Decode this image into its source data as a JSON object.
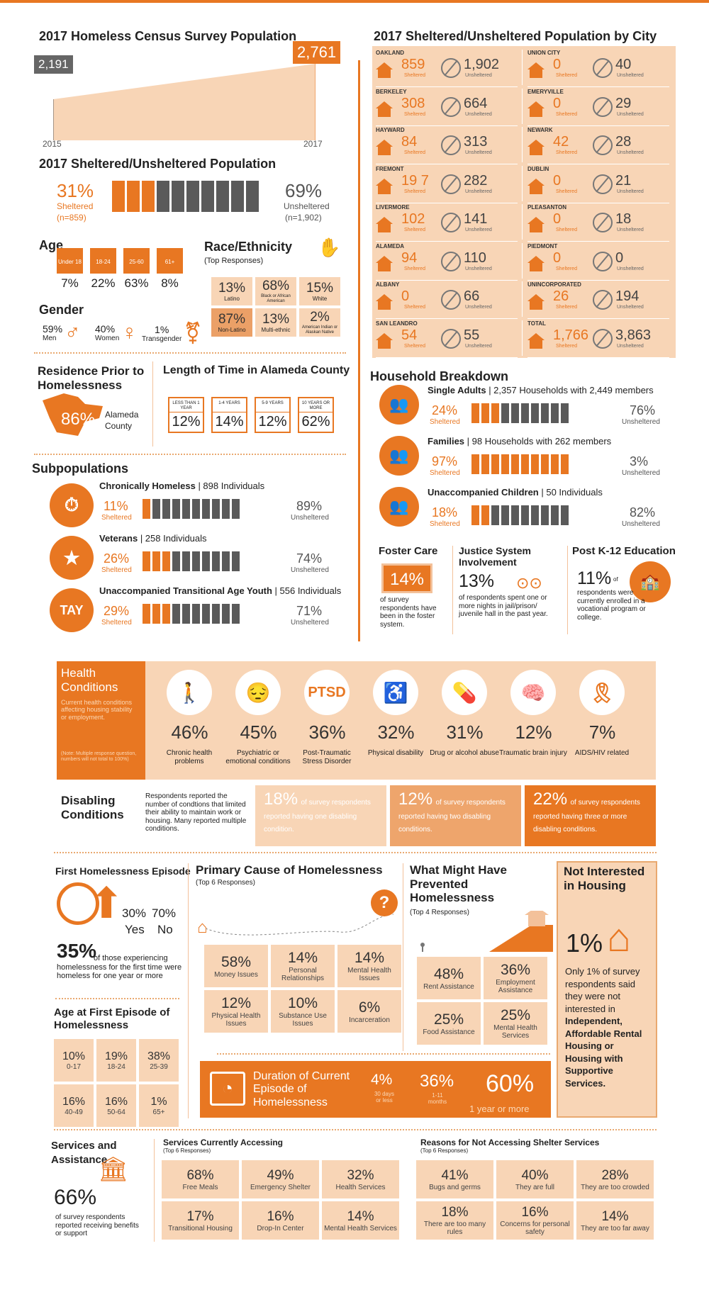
{
  "top": {
    "census_title": "2017 Homeless Census Survey Population",
    "v2015": "2,191",
    "v2017": "2,761",
    "y1": "2015",
    "y2": "2017",
    "city_title": "2017 Sheltered/Unsheltered Population by City",
    "sheltered_title": "2017 Sheltered/Unsheltered Population",
    "pct_sh": "31%",
    "lbl_sh": "Sheltered",
    "n_sh": "(n=859)",
    "pct_un": "69%",
    "lbl_un": "Unsheltered",
    "n_un": "(n=1,902)"
  },
  "cities": [
    {
      "name": "OAKLAND",
      "s": "859",
      "u": "1,902"
    },
    {
      "name": "UNION CITY",
      "s": "0",
      "u": "40"
    },
    {
      "name": "BERKELEY",
      "s": "308",
      "u": "664"
    },
    {
      "name": "EMERYVILLE",
      "s": "0",
      "u": "29"
    },
    {
      "name": "HAYWARD",
      "s": "84",
      "u": "313"
    },
    {
      "name": "NEWARK",
      "s": "42",
      "u": "28"
    },
    {
      "name": "FREMONT",
      "s": "19 7",
      "u": "282"
    },
    {
      "name": "DUBLIN",
      "s": "0",
      "u": "21"
    },
    {
      "name": "LIVERMORE",
      "s": "102",
      "u": "141"
    },
    {
      "name": "PLEASANTON",
      "s": "0",
      "u": "18"
    },
    {
      "name": "ALAMEDA",
      "s": "94",
      "u": "110"
    },
    {
      "name": "PIEDMONT",
      "s": "0",
      "u": "0"
    },
    {
      "name": "ALBANY",
      "s": "0",
      "u": "66"
    },
    {
      "name": "UNINCORPORATED",
      "s": "26",
      "u": "194"
    },
    {
      "name": "SAN LEANDRO",
      "s": "54",
      "u": "55"
    },
    {
      "name": "TOTAL",
      "s": "1,766",
      "u": "3,863"
    }
  ],
  "city_labels": {
    "s": "Sheltered",
    "u": "Unsheltered"
  },
  "age": {
    "title": "Age",
    "groups": [
      {
        "tag": "Under 18",
        "v": "7%"
      },
      {
        "tag": "18-24",
        "v": "22%"
      },
      {
        "tag": "25-60",
        "v": "63%"
      },
      {
        "tag": "61+",
        "v": "8%"
      }
    ]
  },
  "gender": {
    "title": "Gender",
    "men_v": "59%",
    "men": "Men",
    "women_v": "40%",
    "women": "Women",
    "trans_v": "1%",
    "trans": "Transgender"
  },
  "race": {
    "title": "Race/Ethnicity",
    "sub": "(Top Responses)",
    "cells": [
      {
        "v": "13%",
        "l": "Latino"
      },
      {
        "v": "68%",
        "l": "Black or African American"
      },
      {
        "v": "15%",
        "l": "White"
      },
      {
        "v": "87%",
        "l": "Non-Latino"
      },
      {
        "v": "13%",
        "l": "Multi-ethnic"
      },
      {
        "v": "2%",
        "l": "American Indian or Alaskan Native"
      }
    ]
  },
  "residence": {
    "title": "Residence Prior to Homelessness",
    "v": "86%",
    "l": "Alameda County"
  },
  "length": {
    "title": "Length of Time in Alameda County",
    "items": [
      {
        "tag": "LESS THAN 1 YEAR",
        "v": "12%"
      },
      {
        "tag": "1-4 YEARS",
        "v": "14%"
      },
      {
        "tag": "5-9 YEARS",
        "v": "12%"
      },
      {
        "tag": "10 YEARS OR MORE",
        "v": "62%"
      }
    ]
  },
  "household": {
    "title": "Household Breakdown",
    "rows": [
      {
        "head": "Single Adults",
        "rest": " | 2,357 Households with 2,449 members",
        "sv": "24%",
        "uv": "76%",
        "n": 3
      },
      {
        "head": "Families",
        "rest": " | 98 Households with 262 members",
        "sv": "97%",
        "uv": "3%",
        "n": 10
      },
      {
        "head": "Unaccompanied Children",
        "rest": " | 50 Individuals",
        "sv": "18%",
        "uv": "82%",
        "n": 2
      }
    ],
    "s": "Sheltered",
    "u": "Unsheltered"
  },
  "subpop": {
    "title": "Subpopulations",
    "rows": [
      {
        "head": "Chronically Homeless",
        "rest": " | 898 Individuals",
        "sv": "11%",
        "uv": "89%",
        "n": 1
      },
      {
        "head": "Veterans",
        "rest": " | 258 Individuals",
        "sv": "26%",
        "uv": "74%",
        "n": 3
      },
      {
        "head": "Unaccompanied Transitional Age Youth",
        "rest": " | 556 Individuals",
        "sv": "29%",
        "uv": "71%",
        "n": 3
      }
    ],
    "tay": "TAY",
    "s": "Sheltered",
    "u": "Unsheltered"
  },
  "foster": {
    "title": "Foster Care",
    "v": "14%",
    "t": "of survey respondents have been in the foster system."
  },
  "justice": {
    "title": "Justice System Involvement",
    "v": "13%",
    "t": "of respondents spent one or more nights in jail/prison/ juvenile hall in the past year."
  },
  "k12": {
    "title": "Post K-12 Education",
    "v": "11%",
    "of": "of",
    "t": "respondents were currently enrolled in a vocational program or college."
  },
  "health": {
    "title": "Health Conditions",
    "desc": "Current health conditions affecting housing stability or employment.",
    "note": "(Note: Multiple response question, numbers will not total to 100%)",
    "items": [
      {
        "v": "46%",
        "l": "Chronic health problems"
      },
      {
        "v": "45%",
        "l": "Psychiatric or emotional conditions"
      },
      {
        "v": "36%",
        "l": "Post-Traumatic Stress Disorder",
        "icon": "PTSD"
      },
      {
        "v": "32%",
        "l": "Physical disability"
      },
      {
        "v": "31%",
        "l": "Drug or alcohol abuse"
      },
      {
        "v": "12%",
        "l": "Traumatic brain injury"
      },
      {
        "v": "7%",
        "l": "AIDS/HIV related"
      }
    ]
  },
  "disabling": {
    "title": "Disabling Conditions",
    "desc": "Respondents reported the number of condtions that limited their ability to maintain work or housing. Many reported multiple conditions.",
    "items": [
      {
        "v": "18%",
        "t": "of survey respondents reported having one disabling condition."
      },
      {
        "v": "12%",
        "t": "of survey respondents reported having two disabling conditions."
      },
      {
        "v": "22%",
        "t": "of survey respondents reported having three or more disabling conditions."
      }
    ]
  },
  "first": {
    "title": "First Homelessness Episode",
    "yes_v": "30%",
    "no_v": "70%",
    "yes": "Yes",
    "no": "No",
    "big": "35%",
    "t": "of those experiencing homelessness for the first time were homeless for one year or more"
  },
  "agefirst": {
    "title": "Age at First Episode of Homelessness",
    "cells": [
      {
        "v": "10%",
        "l": "0-17"
      },
      {
        "v": "19%",
        "l": "18-24"
      },
      {
        "v": "38%",
        "l": "25-39"
      },
      {
        "v": "16%",
        "l": "40-49"
      },
      {
        "v": "16%",
        "l": "50-64"
      },
      {
        "v": "1%",
        "l": "65+"
      }
    ]
  },
  "cause": {
    "title": "Primary Cause of Homelessness",
    "sub": "(Top 6 Responses)",
    "cells": [
      {
        "v": "58%",
        "l": "Money Issues"
      },
      {
        "v": "14%",
        "l": "Personal Relationships"
      },
      {
        "v": "14%",
        "l": "Mental Health Issues"
      },
      {
        "v": "12%",
        "l": "Physical Health Issues"
      },
      {
        "v": "10%",
        "l": "Substance Use Issues"
      },
      {
        "v": "6%",
        "l": "Incarceration"
      }
    ]
  },
  "prevent": {
    "title": "What Might Have Prevented Homelessness",
    "sub": "(Top 4 Responses)",
    "cells": [
      {
        "v": "48%",
        "l": "Rent Assistance"
      },
      {
        "v": "36%",
        "l": "Employment Assistance"
      },
      {
        "v": "25%",
        "l": "Food Assistance"
      },
      {
        "v": "25%",
        "l": "Mental Health Services"
      }
    ]
  },
  "duration": {
    "title": "Duration of Current Episode of Homelessness",
    "a_v": "4%",
    "a_l": "30 days or less",
    "b_v": "36%",
    "b_l": "1-11 months",
    "c_v": "60%",
    "c_l": "1 year or more"
  },
  "notint": {
    "title": "Not Interested in Housing",
    "v": "1%",
    "t1": "Only 1% of survey respondents said they were not interested in ",
    "t2": "Independent, Affordable Rental Housing or Housing with Supportive Services."
  },
  "services": {
    "title": "Services and Assistance",
    "v": "66%",
    "t": "of survey respondents reported receiving benefits or support"
  },
  "accessing": {
    "title": "Services Currently Accessing",
    "sub": "(Top 6 Responses)",
    "cells": [
      {
        "v": "68%",
        "l": "Free Meals"
      },
      {
        "v": "49%",
        "l": "Emergency Shelter"
      },
      {
        "v": "32%",
        "l": "Health Services"
      },
      {
        "v": "17%",
        "l": "Transitional Housing"
      },
      {
        "v": "16%",
        "l": "Drop-In Center"
      },
      {
        "v": "14%",
        "l": "Mental Health Services"
      }
    ]
  },
  "reasons": {
    "title": "Reasons for Not Accessing Shelter Services",
    "sub": "(Top 6 Responses)",
    "cells": [
      {
        "v": "41%",
        "l": "Bugs and germs"
      },
      {
        "v": "40%",
        "l": "They are full"
      },
      {
        "v": "28%",
        "l": "They are too crowded"
      },
      {
        "v": "18%",
        "l": "There are too many rules"
      },
      {
        "v": "16%",
        "l": "Concerns for personal safety"
      },
      {
        "v": "14%",
        "l": "They are too far away"
      }
    ]
  }
}
